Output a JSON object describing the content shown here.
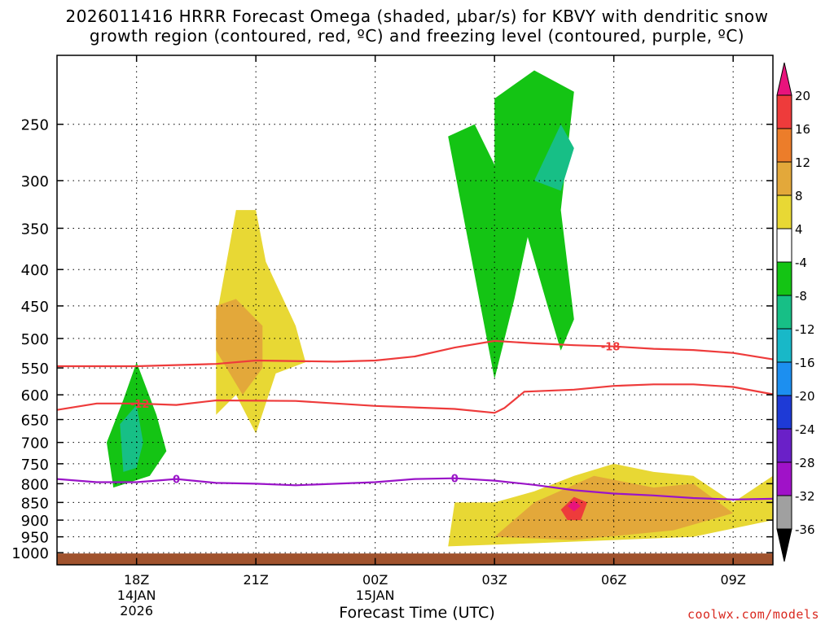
{
  "title": {
    "line1": "2026011416 HRRR Forecast Omega (shaded, μbar/s) for KBVY with dendritic snow",
    "line2": "growth region (contoured, red, ºC) and freezing level (contoured, purple, ºC)"
  },
  "footer": {
    "credit": "coolwx.com/models"
  },
  "chart_data": {
    "type": "area",
    "title": "2026011416 HRRR Forecast Omega (shaded, μbar/s) for KBVY with dendritic snow growth region (contoured, red, ºC) and freezing level (contoured, purple, ºC)",
    "xlabel": "Forecast Time (UTC)",
    "ylabel": "",
    "y_scale": "log-pressure (hPa), inverted",
    "ylim": [
      1040,
      200
    ],
    "xlim": [
      "2026-01-14T16:00Z",
      "2026-01-15T10:00Z"
    ],
    "grid": true,
    "y_ticks": [
      250,
      300,
      350,
      400,
      450,
      500,
      550,
      600,
      650,
      700,
      750,
      800,
      850,
      900,
      950,
      1000
    ],
    "x_ticks": [
      {
        "t": "2026-01-14T18:00Z",
        "lines": [
          "18Z",
          "14JAN",
          "2026"
        ]
      },
      {
        "t": "2026-01-14T21:00Z",
        "lines": [
          "21Z"
        ]
      },
      {
        "t": "2026-01-15T00:00Z",
        "lines": [
          "00Z",
          "15JAN"
        ]
      },
      {
        "t": "2026-01-15T03:00Z",
        "lines": [
          "03Z"
        ]
      },
      {
        "t": "2026-01-15T06:00Z",
        "lines": [
          "06Z"
        ]
      },
      {
        "t": "2026-01-15T09:00Z",
        "lines": [
          "09Z"
        ]
      }
    ],
    "colorbar": {
      "labels": [
        "20",
        "16",
        "12",
        "8",
        "4",
        "-4",
        "-8",
        "-12",
        "-16",
        "-20",
        "-24",
        "-28",
        "-32",
        "-36"
      ],
      "bins": [
        {
          "range": [
            20,
            null
          ],
          "color": "#e8137c"
        },
        {
          "range": [
            16,
            20
          ],
          "color": "#ee3b3b"
        },
        {
          "range": [
            12,
            16
          ],
          "color": "#ec7d2a"
        },
        {
          "range": [
            8,
            12
          ],
          "color": "#e3a83a"
        },
        {
          "range": [
            4,
            8
          ],
          "color": "#e8d834"
        },
        {
          "range": [
            -4,
            4
          ],
          "color": "#ffffff"
        },
        {
          "range": [
            -8,
            -4
          ],
          "color": "#14c414"
        },
        {
          "range": [
            -12,
            -8
          ],
          "color": "#17bf86"
        },
        {
          "range": [
            -16,
            -12
          ],
          "color": "#18b8c8"
        },
        {
          "range": [
            -20,
            -16
          ],
          "color": "#1c8ff0"
        },
        {
          "range": [
            -24,
            -20
          ],
          "color": "#1e3ad6"
        },
        {
          "range": [
            -28,
            -24
          ],
          "color": "#6a20c8"
        },
        {
          "range": [
            -32,
            -28
          ],
          "color": "#a012c8"
        },
        {
          "range": [
            -36,
            -32
          ],
          "color": "#a0a0a0"
        },
        {
          "range": [
            null,
            -36
          ],
          "color": "#000000"
        }
      ]
    },
    "contours": [
      {
        "name": "-18",
        "color": "#ee3b3b",
        "label_at": "2026-01-15T05:55Z",
        "points": [
          [
            "2026-01-14T16:00Z",
            547
          ],
          [
            "2026-01-14T18:00Z",
            547
          ],
          [
            "2026-01-14T20:00Z",
            543
          ],
          [
            "2026-01-14T21:00Z",
            537
          ],
          [
            "2026-01-14T23:00Z",
            539
          ],
          [
            "2026-01-15T00:00Z",
            537
          ],
          [
            "2026-01-15T01:00Z",
            530
          ],
          [
            "2026-01-15T02:00Z",
            515
          ],
          [
            "2026-01-15T03:00Z",
            504
          ],
          [
            "2026-01-15T04:00Z",
            508
          ],
          [
            "2026-01-15T05:00Z",
            511
          ],
          [
            "2026-01-15T06:00Z",
            513
          ],
          [
            "2026-01-15T07:00Z",
            517
          ],
          [
            "2026-01-15T08:00Z",
            519
          ],
          [
            "2026-01-15T09:00Z",
            524
          ],
          [
            "2026-01-15T10:00Z",
            535
          ]
        ]
      },
      {
        "name": "-12",
        "color": "#ee3b3b",
        "label_at": "2026-01-14T18:05Z",
        "points": [
          [
            "2026-01-14T16:00Z",
            630
          ],
          [
            "2026-01-14T17:00Z",
            617
          ],
          [
            "2026-01-14T18:00Z",
            617
          ],
          [
            "2026-01-14T19:00Z",
            620
          ],
          [
            "2026-01-14T20:00Z",
            611
          ],
          [
            "2026-01-14T22:00Z",
            612
          ],
          [
            "2026-01-15T00:00Z",
            622
          ],
          [
            "2026-01-15T02:00Z",
            628
          ],
          [
            "2026-01-15T03:00Z",
            636
          ],
          [
            "2026-01-15T03:15Z",
            626
          ],
          [
            "2026-01-15T03:45Z",
            594
          ],
          [
            "2026-01-15T05:00Z",
            590
          ],
          [
            "2026-01-15T06:00Z",
            583
          ],
          [
            "2026-01-15T07:00Z",
            580
          ],
          [
            "2026-01-15T08:00Z",
            580
          ],
          [
            "2026-01-15T09:00Z",
            585
          ],
          [
            "2026-01-15T10:00Z",
            599
          ]
        ]
      },
      {
        "name": "0",
        "color": "#9a14c8",
        "label_at": [
          "2026-01-14T19:00Z",
          "2026-01-15T02:00Z"
        ],
        "points": [
          [
            "2026-01-14T16:00Z",
            788
          ],
          [
            "2026-01-14T17:00Z",
            796
          ],
          [
            "2026-01-14T18:00Z",
            796
          ],
          [
            "2026-01-14T19:00Z",
            788
          ],
          [
            "2026-01-14T20:00Z",
            798
          ],
          [
            "2026-01-14T21:00Z",
            800
          ],
          [
            "2026-01-14T22:00Z",
            804
          ],
          [
            "2026-01-15T00:00Z",
            796
          ],
          [
            "2026-01-15T01:00Z",
            788
          ],
          [
            "2026-01-15T02:00Z",
            786
          ],
          [
            "2026-01-15T03:00Z",
            792
          ],
          [
            "2026-01-15T04:00Z",
            803
          ],
          [
            "2026-01-15T05:00Z",
            817
          ],
          [
            "2026-01-15T06:00Z",
            826
          ],
          [
            "2026-01-15T07:00Z",
            831
          ],
          [
            "2026-01-15T08:00Z",
            838
          ],
          [
            "2026-01-15T09:00Z",
            842
          ],
          [
            "2026-01-15T10:00Z",
            840
          ]
        ]
      }
    ],
    "omega_regions": [
      {
        "value_range": [
          4,
          8
        ],
        "points": [
          [
            "2026-01-14T20:00Z",
            640
          ],
          [
            "2026-01-14T20:00Z",
            470
          ],
          [
            "2026-01-14T20:30Z",
            330
          ],
          [
            "2026-01-14T21:00Z",
            330
          ],
          [
            "2026-01-14T21:15Z",
            390
          ],
          [
            "2026-01-14T22:00Z",
            480
          ],
          [
            "2026-01-14T22:15Z",
            540
          ],
          [
            "2026-01-14T21:30Z",
            560
          ],
          [
            "2026-01-14T21:00Z",
            680
          ],
          [
            "2026-01-14T20:30Z",
            600
          ]
        ]
      },
      {
        "value_range": [
          8,
          12
        ],
        "points": [
          [
            "2026-01-14T20:00Z",
            520
          ],
          [
            "2026-01-14T20:00Z",
            450
          ],
          [
            "2026-01-14T20:30Z",
            440
          ],
          [
            "2026-01-14T21:10Z",
            480
          ],
          [
            "2026-01-14T21:10Z",
            550
          ],
          [
            "2026-01-14T20:40Z",
            600
          ]
        ]
      },
      {
        "value_range": [
          -8,
          -4
        ],
        "points": [
          [
            "2026-01-14T17:25Z",
            810
          ],
          [
            "2026-01-14T17:15Z",
            700
          ],
          [
            "2026-01-14T17:40Z",
            610
          ],
          [
            "2026-01-14T18:00Z",
            540
          ],
          [
            "2026-01-14T18:30Z",
            640
          ],
          [
            "2026-01-14T18:45Z",
            720
          ],
          [
            "2026-01-14T18:20Z",
            780
          ]
        ]
      },
      {
        "value_range": [
          -12,
          -8
        ],
        "points": [
          [
            "2026-01-14T17:40Z",
            770
          ],
          [
            "2026-01-14T17:35Z",
            660
          ],
          [
            "2026-01-14T18:00Z",
            620
          ],
          [
            "2026-01-14T18:10Z",
            700
          ],
          [
            "2026-01-14T18:00Z",
            760
          ]
        ]
      },
      {
        "value_range": [
          -8,
          -4
        ],
        "points": [
          [
            "2026-01-15T03:00Z",
            570
          ],
          [
            "2026-01-15T01:50Z",
            260
          ],
          [
            "2026-01-15T02:30Z",
            250
          ],
          [
            "2026-01-15T03:00Z",
            285
          ],
          [
            "2026-01-15T03:00Z",
            230
          ],
          [
            "2026-01-15T04:00Z",
            210
          ],
          [
            "2026-01-15T05:00Z",
            225
          ],
          [
            "2026-01-15T04:40Z",
            330
          ],
          [
            "2026-01-15T05:00Z",
            470
          ],
          [
            "2026-01-15T04:40Z",
            520
          ],
          [
            "2026-01-15T04:20Z",
            450
          ],
          [
            "2026-01-15T03:50Z",
            360
          ],
          [
            "2026-01-15T03:30Z",
            440
          ]
        ]
      },
      {
        "value_range": [
          -12,
          -8
        ],
        "points": [
          [
            "2026-01-15T04:00Z",
            300
          ],
          [
            "2026-01-15T04:40Z",
            250
          ],
          [
            "2026-01-15T05:00Z",
            270
          ],
          [
            "2026-01-15T04:40Z",
            310
          ]
        ]
      },
      {
        "value_range": [
          4,
          8
        ],
        "points": [
          [
            "2026-01-15T01:50Z",
            980
          ],
          [
            "2026-01-15T02:00Z",
            850
          ],
          [
            "2026-01-15T03:00Z",
            850
          ],
          [
            "2026-01-15T04:00Z",
            820
          ],
          [
            "2026-01-15T05:00Z",
            780
          ],
          [
            "2026-01-15T06:00Z",
            750
          ],
          [
            "2026-01-15T07:00Z",
            770
          ],
          [
            "2026-01-15T08:00Z",
            780
          ],
          [
            "2026-01-15T09:00Z",
            850
          ],
          [
            "2026-01-15T10:00Z",
            780
          ],
          [
            "2026-01-15T10:00Z",
            900
          ],
          [
            "2026-01-15T08:00Z",
            950
          ],
          [
            "2026-01-15T06:00Z",
            960
          ],
          [
            "2026-01-15T04:00Z",
            970
          ]
        ]
      },
      {
        "value_range": [
          8,
          12
        ],
        "points": [
          [
            "2026-01-15T03:00Z",
            950
          ],
          [
            "2026-01-15T04:00Z",
            850
          ],
          [
            "2026-01-15T05:30Z",
            780
          ],
          [
            "2026-01-15T07:00Z",
            810
          ],
          [
            "2026-01-15T08:00Z",
            800
          ],
          [
            "2026-01-15T09:00Z",
            880
          ],
          [
            "2026-01-15T07:30Z",
            930
          ],
          [
            "2026-01-15T05:00Z",
            960
          ]
        ]
      },
      {
        "value_range": [
          16,
          20
        ],
        "points": [
          [
            "2026-01-15T04:40Z",
            870
          ],
          [
            "2026-01-15T05:00Z",
            835
          ],
          [
            "2026-01-15T05:20Z",
            850
          ],
          [
            "2026-01-15T05:10Z",
            900
          ],
          [
            "2026-01-15T04:50Z",
            900
          ]
        ]
      },
      {
        "value_range": [
          20,
          null
        ],
        "points": [
          [
            "2026-01-15T04:50Z",
            860
          ],
          [
            "2026-01-15T05:00Z",
            845
          ],
          [
            "2026-01-15T05:10Z",
            860
          ],
          [
            "2026-01-15T05:00Z",
            875
          ]
        ]
      }
    ]
  }
}
